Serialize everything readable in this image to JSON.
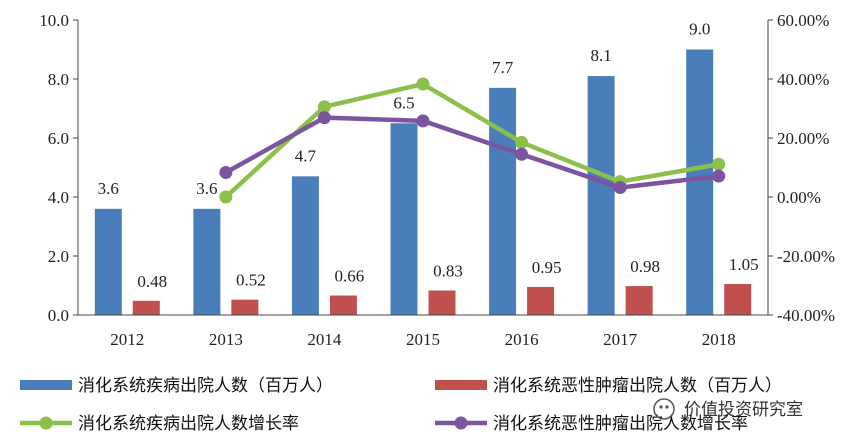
{
  "chart_data": {
    "type": "bar",
    "categories": [
      "2012",
      "2013",
      "2014",
      "2015",
      "2016",
      "2017",
      "2018"
    ],
    "series": [
      {
        "name": "消化系统疾病出院人数（百万人）",
        "kind": "bar",
        "axis": "left",
        "values": [
          3.6,
          3.6,
          4.7,
          6.5,
          7.7,
          8.1,
          9.0
        ],
        "labels": [
          "3.6",
          "3.6",
          "4.7",
          "6.5",
          "7.7",
          "8.1",
          "9.0"
        ],
        "color": "#4a7ebb"
      },
      {
        "name": "消化系统恶性肿瘤出院人数（百万人）",
        "kind": "bar",
        "axis": "left",
        "values": [
          0.48,
          0.52,
          0.66,
          0.83,
          0.95,
          0.98,
          1.05
        ],
        "labels": [
          "0.48",
          "0.52",
          "0.66",
          "0.83",
          "0.95",
          "0.98",
          "1.05"
        ],
        "color": "#c0504d"
      },
      {
        "name": "消化系统疾病出院人数增长率",
        "kind": "line",
        "axis": "right",
        "x": [
          "2013",
          "2014",
          "2015",
          "2016",
          "2017",
          "2018"
        ],
        "values": [
          0.0,
          30.6,
          38.3,
          18.5,
          5.2,
          11.1
        ],
        "color": "#8cc04a"
      },
      {
        "name": "消化系统恶性肿瘤出院人数增长率",
        "kind": "line",
        "axis": "right",
        "x": [
          "2013",
          "2014",
          "2015",
          "2016",
          "2017",
          "2018"
        ],
        "values": [
          8.3,
          26.9,
          25.8,
          14.5,
          3.2,
          7.1
        ],
        "color": "#7b55a0"
      }
    ],
    "left_axis": {
      "ylim": [
        0,
        10
      ],
      "ticks": [
        "0.0",
        "2.0",
        "4.0",
        "6.0",
        "8.0",
        "10.0"
      ]
    },
    "right_axis": {
      "ylim": [
        -40,
        60
      ],
      "ticks": [
        "-40.00%",
        "-20.00%",
        "0.00%",
        "20.00%",
        "40.00%",
        "60.00%"
      ]
    },
    "legend_position": "bottom",
    "grid": false
  },
  "watermark": "价值投资研究室"
}
